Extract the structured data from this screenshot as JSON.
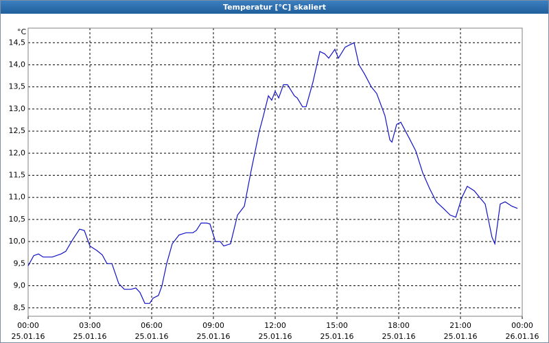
{
  "chart_data": {
    "type": "line",
    "title": "Temperatur [°C] skaliert",
    "y_unit": "°C",
    "color": "#1010c8",
    "grid": true,
    "xlim": [
      0,
      24
    ],
    "ylim": [
      8.31,
      14.83
    ],
    "xticks": [
      {
        "value": 0,
        "label": "00:00",
        "date": "25.01.16"
      },
      {
        "value": 3,
        "label": "03:00",
        "date": "25.01.16"
      },
      {
        "value": 6,
        "label": "06:00",
        "date": "25.01.16"
      },
      {
        "value": 9,
        "label": "09:00",
        "date": "25.01.16"
      },
      {
        "value": 12,
        "label": "12:00",
        "date": "25.01.16"
      },
      {
        "value": 15,
        "label": "15:00",
        "date": "25.01.16"
      },
      {
        "value": 18,
        "label": "18:00",
        "date": "25.01.16"
      },
      {
        "value": 21,
        "label": "21:00",
        "date": "25.01.16"
      },
      {
        "value": 24,
        "label": "00:00",
        "date": "26.01.16"
      }
    ],
    "yticks": [
      {
        "value": 8.5,
        "label": "8,5"
      },
      {
        "value": 9,
        "label": "9,0"
      },
      {
        "value": 9.5,
        "label": "9,5"
      },
      {
        "value": 10,
        "label": "10,0"
      },
      {
        "value": 10.5,
        "label": "10,5"
      },
      {
        "value": 11,
        "label": "11,0"
      },
      {
        "value": 11.5,
        "label": "11,5"
      },
      {
        "value": 12,
        "label": "12,0"
      },
      {
        "value": 12.5,
        "label": "12,5"
      },
      {
        "value": 13,
        "label": "13,0"
      },
      {
        "value": 13.5,
        "label": "13,5"
      },
      {
        "value": 14,
        "label": "14,0"
      },
      {
        "value": 14.5,
        "label": "14,5"
      }
    ],
    "x": [
      0,
      0.27,
      0.5,
      0.73,
      1.17,
      1.6,
      1.83,
      2.17,
      2.5,
      2.73,
      3,
      3.33,
      3.6,
      3.83,
      4.07,
      4.4,
      4.67,
      5,
      5.23,
      5.43,
      5.67,
      5.9,
      6.07,
      6.33,
      6.5,
      6.73,
      7,
      7.33,
      7.67,
      8,
      8.17,
      8.4,
      8.67,
      8.83,
      9.1,
      9.33,
      9.5,
      9.83,
      10.17,
      10.5,
      10.83,
      11.23,
      11.43,
      11.67,
      11.83,
      12,
      12.17,
      12.4,
      12.6,
      12.93,
      13.07,
      13.33,
      13.5,
      13.83,
      14.17,
      14.4,
      14.6,
      14.9,
      15.07,
      15.4,
      15.83,
      16.07,
      16.33,
      16.67,
      16.93,
      17.33,
      17.57,
      17.67,
      17.9,
      18.1,
      18.5,
      18.83,
      19.17,
      19.5,
      19.83,
      20.17,
      20.5,
      20.77,
      21.07,
      21.33,
      21.67,
      21.93,
      22.2,
      22.53,
      22.67,
      22.93,
      23.17,
      23.5,
      23.77
    ],
    "values": [
      9.45,
      9.68,
      9.72,
      9.65,
      9.65,
      9.72,
      9.78,
      10.05,
      10.28,
      10.25,
      9.9,
      9.8,
      9.7,
      9.5,
      9.5,
      9.05,
      8.92,
      8.92,
      8.95,
      8.85,
      8.6,
      8.6,
      8.72,
      8.78,
      9.0,
      9.5,
      9.95,
      10.15,
      10.2,
      10.2,
      10.25,
      10.42,
      10.42,
      10.4,
      10.0,
      10.0,
      9.9,
      9.95,
      10.6,
      10.8,
      11.6,
      12.5,
      12.85,
      13.3,
      13.2,
      13.4,
      13.25,
      13.55,
      13.55,
      13.3,
      13.25,
      13.05,
      13.05,
      13.6,
      14.3,
      14.25,
      14.15,
      14.35,
      14.15,
      14.4,
      14.5,
      14.0,
      13.8,
      13.5,
      13.35,
      12.85,
      12.3,
      12.25,
      12.65,
      12.7,
      12.35,
      12.05,
      11.55,
      11.2,
      10.9,
      10.75,
      10.6,
      10.55,
      11.0,
      11.25,
      11.15,
      11.0,
      10.85,
      10.1,
      9.95,
      10.85,
      10.9,
      10.8,
      10.75
    ]
  }
}
